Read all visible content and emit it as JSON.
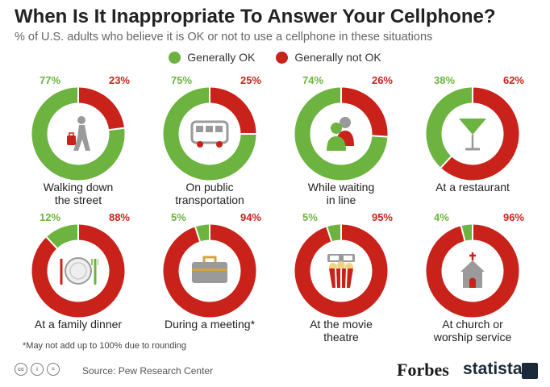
{
  "title": "When Is It Inappropriate To Answer Your Cellphone?",
  "subtitle": "% of U.S. adults who believe it is OK or not to use a cellphone in these situations",
  "legend": {
    "ok_label": "Generally OK",
    "not_label": "Generally not OK"
  },
  "colors": {
    "ok": "#6cb33f",
    "not_ok": "#c8221a",
    "icon": "#9a9a9a"
  },
  "chart_data": {
    "type": "pie",
    "title": "When Is It Inappropriate To Answer Your Cellphone?",
    "subtitle": "% of U.S. adults who believe it is OK or not to use a cellphone in these situations",
    "series_names": [
      "Generally OK",
      "Generally not OK"
    ],
    "panels": [
      {
        "label_lines": [
          "Walking down",
          "the street"
        ],
        "ok": 77,
        "not_ok": 23,
        "ok_text": "77%",
        "not_text": "23%",
        "icon": "pedestrian-icon"
      },
      {
        "label_lines": [
          "On public",
          "transportation"
        ],
        "ok": 75,
        "not_ok": 25,
        "ok_text": "75%",
        "not_text": "25%",
        "icon": "bus-icon"
      },
      {
        "label_lines": [
          "While waiting",
          "in line"
        ],
        "ok": 74,
        "not_ok": 26,
        "ok_text": "74%",
        "not_text": "26%",
        "icon": "people-queue-icon"
      },
      {
        "label_lines": [
          "At a restaurant"
        ],
        "ok": 38,
        "not_ok": 62,
        "ok_text": "38%",
        "not_text": "62%",
        "icon": "cocktail-glass-icon"
      },
      {
        "label_lines": [
          "At a family dinner"
        ],
        "ok": 12,
        "not_ok": 88,
        "ok_text": "12%",
        "not_text": "88%",
        "icon": "dinner-plate-icon"
      },
      {
        "label_lines": [
          "During a meeting*"
        ],
        "ok": 5,
        "not_ok": 94,
        "ok_text": "5%",
        "not_text": "94%",
        "icon": "briefcase-icon"
      },
      {
        "label_lines": [
          "At the movie",
          "theatre"
        ],
        "ok": 5,
        "not_ok": 95,
        "ok_text": "5%",
        "not_text": "95%",
        "icon": "popcorn-3d-glasses-icon"
      },
      {
        "label_lines": [
          "At church or",
          "worship service"
        ],
        "ok": 4,
        "not_ok": 96,
        "ok_text": "4%",
        "not_text": "96%",
        "icon": "church-icon"
      }
    ]
  },
  "footnote": "*May not add up to 100% due to rounding",
  "cc_badges": [
    "cc",
    "i",
    "="
  ],
  "source": "Source: Pew Research Center",
  "brands": {
    "forbes": "Forbes",
    "statista": "statista"
  }
}
